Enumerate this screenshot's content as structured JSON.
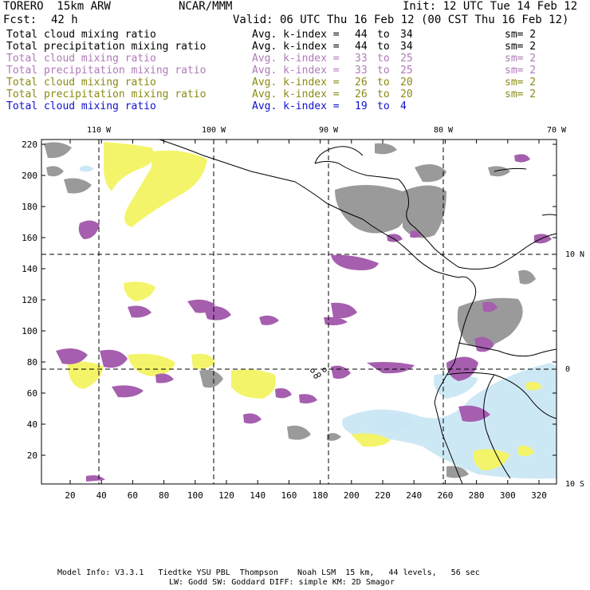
{
  "header": {
    "model": "TORERO  15km ARW",
    "center": "NCAR/MMM",
    "init": "Init: 12 UTC Tue 14 Feb 12",
    "fcst_label": "Fcst:",
    "fcst_value": "42 h",
    "valid": "Valid: 06 UTC Thu 16 Feb 12 (00 CST Thu 16 Feb 12)"
  },
  "legend_rows": [
    {
      "field": "Total cloud mixing ratio",
      "kindex_label": "Avg. k-index =",
      "k1": "44",
      "to": "to",
      "k2": "34",
      "sm": "sm= 2",
      "color": "#000000"
    },
    {
      "field": "Total precipitation mixing ratio",
      "kindex_label": "Avg. k-index =",
      "k1": "44",
      "to": "to",
      "k2": "34",
      "sm": "sm= 2",
      "color": "#000000"
    },
    {
      "field": "Total cloud mixing ratio",
      "kindex_label": "Avg. k-index =",
      "k1": "33",
      "to": "to",
      "k2": "25",
      "sm": "sm= 2",
      "color": "#b07ab8"
    },
    {
      "field": "Total precipitation mixing ratio",
      "kindex_label": "Avg. k-index =",
      "k1": "33",
      "to": "to",
      "k2": "25",
      "sm": "sm= 2",
      "color": "#b07ab8"
    },
    {
      "field": "Total cloud mixing ratio",
      "kindex_label": "Avg. k-index =",
      "k1": "26",
      "to": "to",
      "k2": "20",
      "sm": "sm= 2",
      "color": "#8a8a14"
    },
    {
      "field": "Total precipitation mixing ratio",
      "kindex_label": "Avg. k-index =",
      "k1": "26",
      "to": "to",
      "k2": "20",
      "sm": "sm= 2",
      "color": "#8a8a14"
    },
    {
      "field": "Total cloud mixing ratio",
      "kindex_label": "Avg. k-index =",
      "k1": "19",
      "to": "to",
      "k2": "4",
      "sm": "",
      "color": "#1010d0"
    }
  ],
  "map": {
    "lon_labels": [
      "110 W",
      "100 W",
      "90 W",
      "80 W",
      "70 W"
    ],
    "lat_labels": [
      "10 N",
      "0",
      "10 S"
    ],
    "y_ticks": [
      "220",
      "200",
      "180",
      "160",
      "140",
      "120",
      "100",
      "80",
      "60",
      "40",
      "20"
    ],
    "x_ticks": [
      "20",
      "40",
      "60",
      "80",
      "100",
      "120",
      "140",
      "160",
      "180",
      "200",
      "220",
      "240",
      "260",
      "280",
      "300",
      "320"
    ],
    "colors": {
      "gray": "#9a9a9a",
      "purple": "#a55fae",
      "yellow": "#f4f46a",
      "lightblue": "#c8e6f4",
      "coast": "#000000",
      "grid": "#000000"
    }
  },
  "footer": {
    "line1": "Model Info: V3.3.1   Tiedtke YSU PBL  Thompson    Noah LSM  15 km,   44 levels,   56 sec",
    "line2": "LW: Godd SW: Goddard DIFF: simple KM: 2D Smagor"
  }
}
